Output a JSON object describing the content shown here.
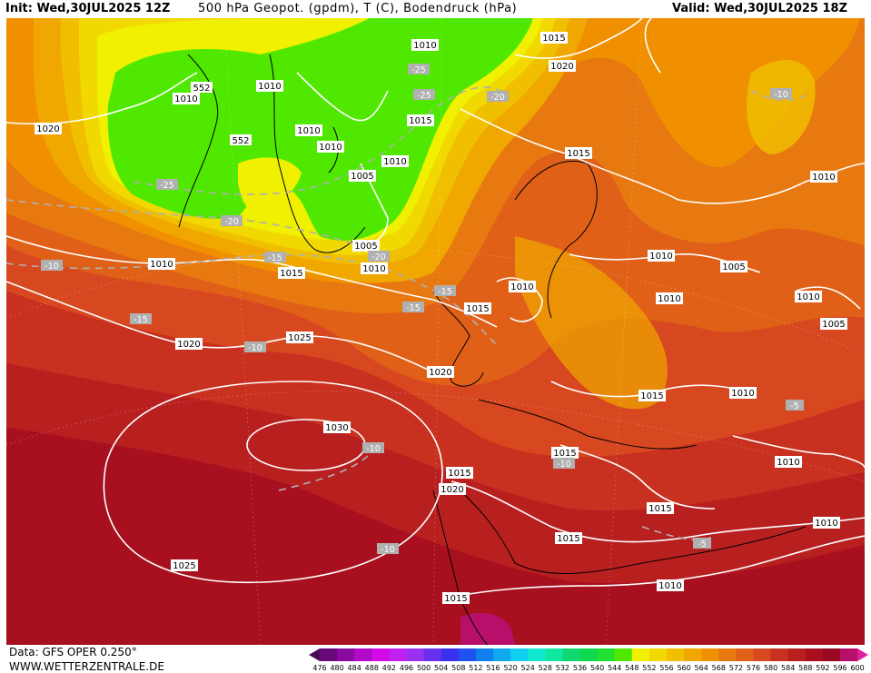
{
  "header": {
    "init": "Init: Wed,30JUL2025 12Z",
    "title": "500 hPa Geopot. (gpdm), T (C), Bodendruck (hPa)",
    "valid": "Valid: Wed,30JUL2025 18Z"
  },
  "footer": {
    "data_source": "Data: GFS OPER 0.250°",
    "website": "WWW.WETTERZENTRALE.DE"
  },
  "legend": {
    "ticks": [
      "476",
      "480",
      "484",
      "488",
      "492",
      "496",
      "500",
      "504",
      "508",
      "512",
      "516",
      "520",
      "524",
      "528",
      "532",
      "536",
      "540",
      "544",
      "548",
      "552",
      "556",
      "560",
      "564",
      "568",
      "572",
      "576",
      "580",
      "584",
      "588",
      "592",
      "596",
      "600"
    ],
    "colors": [
      "#4b0a55",
      "#6a0a7a",
      "#8a0aa0",
      "#b00ac8",
      "#d40ae6",
      "#c020f0",
      "#9a30f0",
      "#6a30f0",
      "#3a30f0",
      "#2050f0",
      "#1080f0",
      "#10a8f0",
      "#10d0f0",
      "#10e8d0",
      "#10e8a0",
      "#10d870",
      "#10d850",
      "#20e030",
      "#50e800",
      "#f0f000",
      "#f0d800",
      "#f0c000",
      "#f0a800",
      "#f09000",
      "#e87810",
      "#e06018",
      "#d84820",
      "#c83020",
      "#b82020",
      "#a81020",
      "#980820",
      "#b8106a",
      "#e0209a"
    ]
  },
  "map": {
    "pressure_labels": [
      "1010",
      "1015",
      "1020",
      "1010",
      "1010",
      "1010",
      "1010",
      "1015",
      "1005",
      "1010",
      "1005",
      "1010",
      "1010",
      "1015",
      "1020",
      "1015",
      "1010",
      "1015",
      "1010",
      "1005",
      "1010",
      "1010",
      "1010",
      "1015",
      "1020",
      "1025",
      "1020",
      "1010",
      "1015",
      "1030",
      "1015",
      "1020",
      "1015",
      "1010",
      "1015",
      "1025",
      "1010",
      "1010",
      "1015",
      "1010",
      "1005",
      "1010",
      "1010",
      "552",
      "552"
    ],
    "temp_labels": [
      "-25",
      "-25",
      "-20",
      "-25",
      "-20",
      "-15",
      "-10",
      "-20",
      "-15",
      "-15",
      "-10",
      "-10",
      "-10",
      "-10",
      "-15",
      "-10",
      "-5",
      "-5"
    ],
    "colors": {
      "geop_552": "#50e800",
      "geop_556": "#f0f000",
      "geop_560": "#f0d800",
      "geop_564": "#f0c000",
      "geop_568": "#f0a800",
      "geop_572": "#f09000",
      "geop_576": "#e87810",
      "geop_580": "#e06018",
      "geop_584": "#d84820",
      "geop_588": "#c83020",
      "geop_592": "#b82020",
      "geop_596": "#a81020",
      "geop_600": "#980820"
    }
  }
}
